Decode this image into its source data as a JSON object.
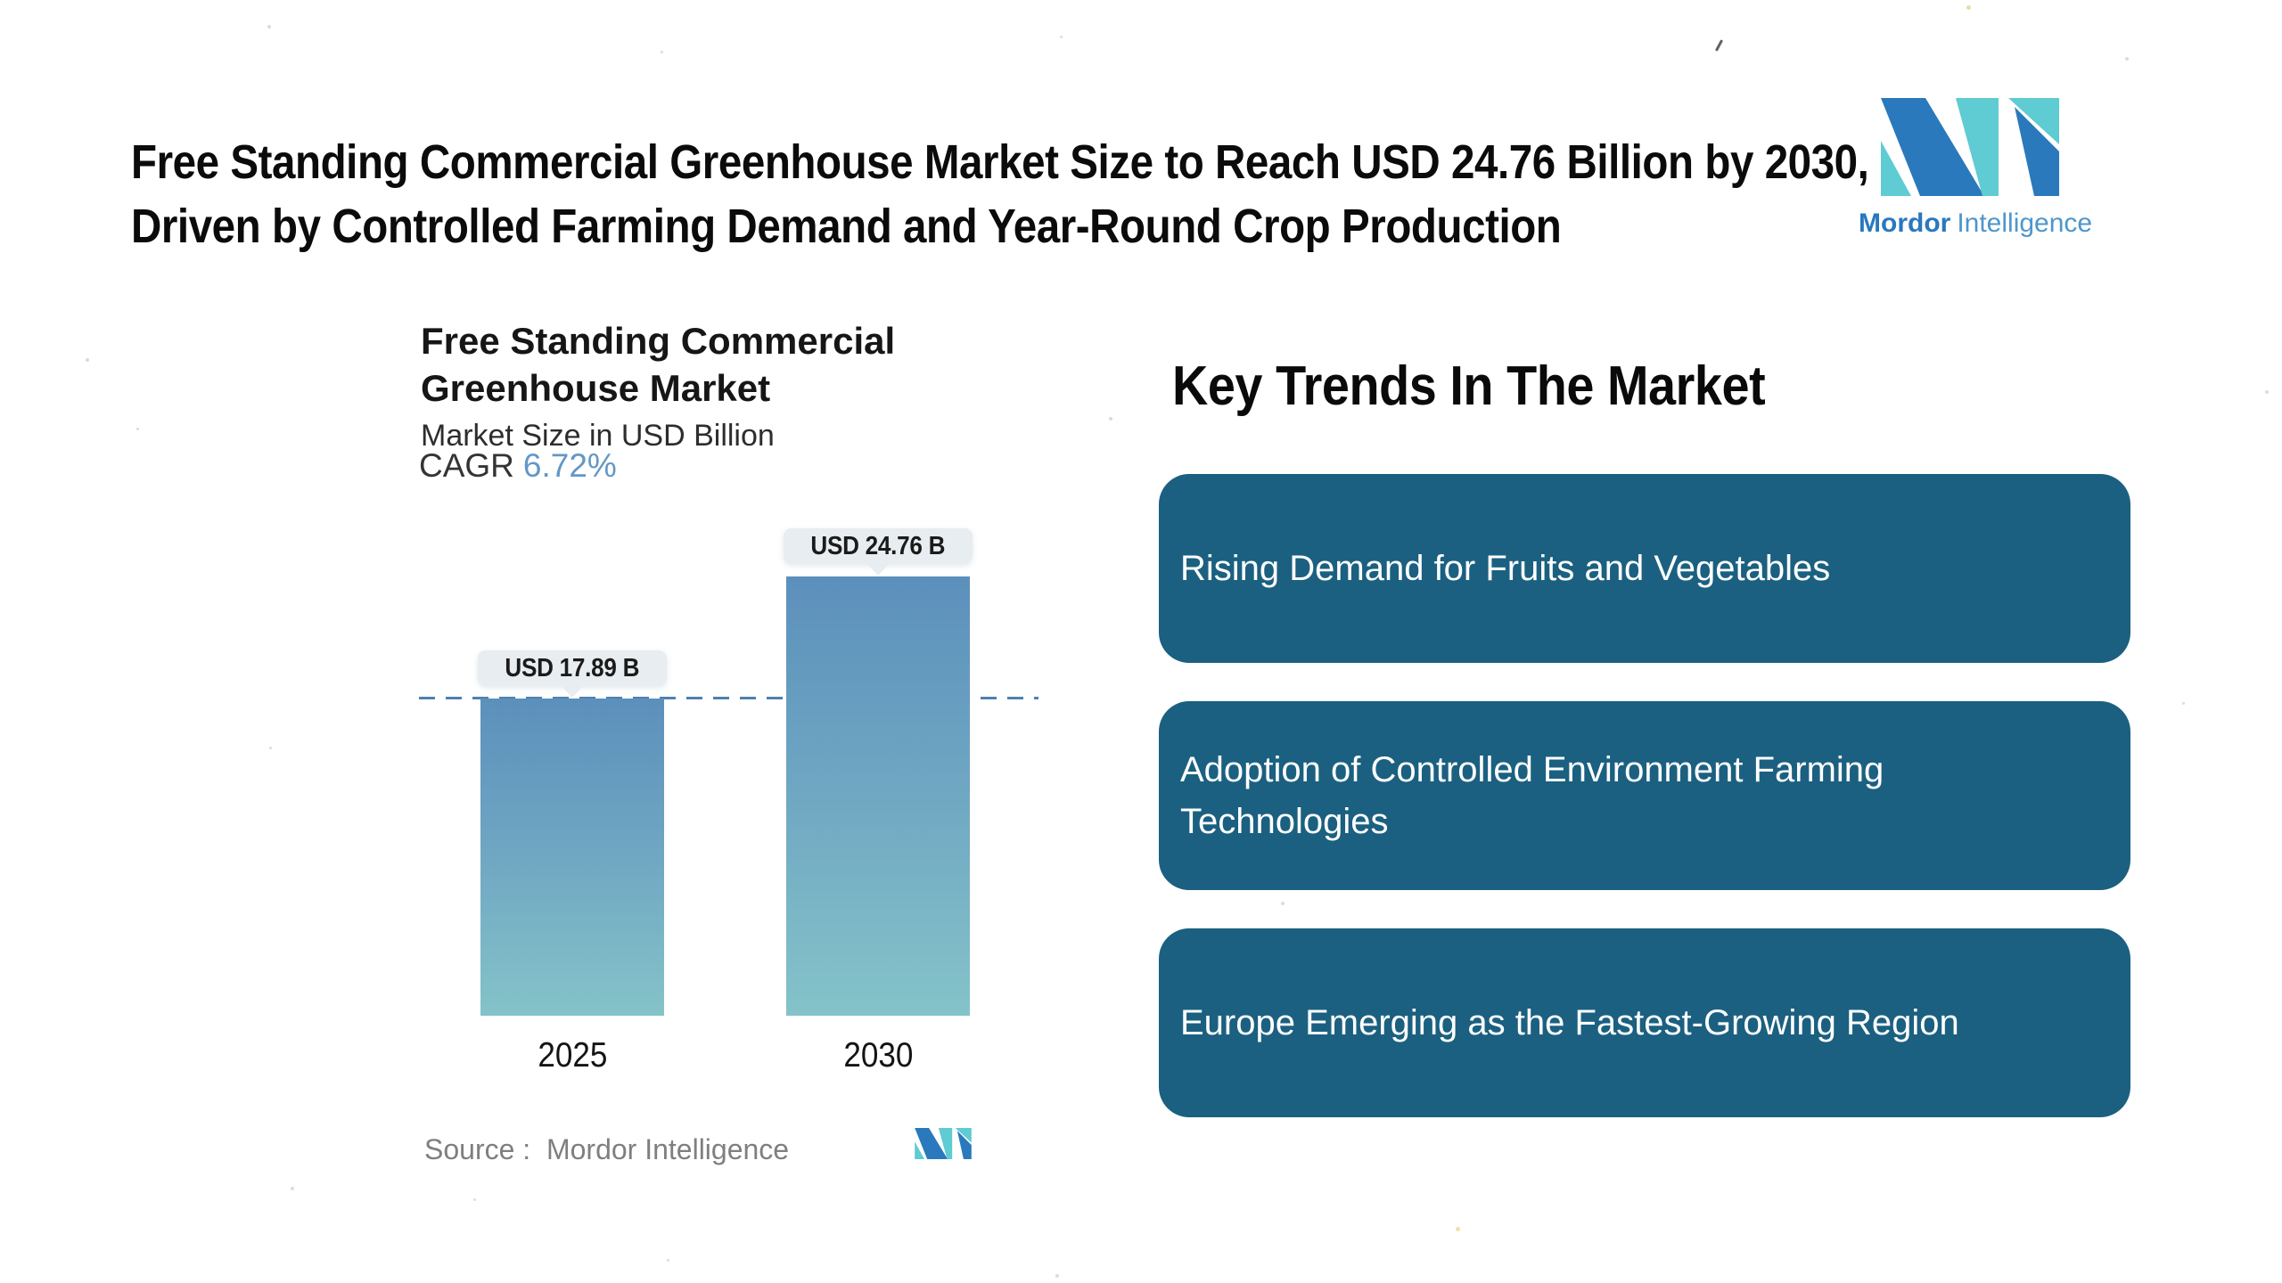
{
  "header": {
    "headline_line1": "Free Standing Commercial Greenhouse Market Size to Reach USD 24.76 Billion by 2030,",
    "headline_line2": "Driven by Controlled Farming Demand and Year-Round Crop Production"
  },
  "brand": {
    "name_bold": "Mordor",
    "name_light": "Intelligence",
    "colors": {
      "teal": "#5FCBD2",
      "blue": "#2A79BC",
      "wordmark_bold": "#2878BE",
      "wordmark_light": "#4E96CC"
    }
  },
  "chart_data": {
    "type": "bar",
    "title": "Free Standing Commercial Greenhouse Market",
    "title_lines": [
      "Free Standing Commercial",
      "Greenhouse Market"
    ],
    "subtitle": "Market Size in USD Billion",
    "cagr_label": "CAGR",
    "cagr_value": "6.72%",
    "categories": [
      "2025",
      "2030"
    ],
    "values": [
      17.89,
      24.76
    ],
    "bar_labels": [
      "USD 17.89 B",
      "USD 24.76 B"
    ],
    "unit": "USD Billion",
    "ylim": [
      0,
      26
    ],
    "grid": "off",
    "legend": "none",
    "reference_line": {
      "value": 17.89,
      "style": "dashed"
    },
    "source": "Source :  Mordor Intelligence",
    "colors": {
      "bar_gradient_top": "#5C90BC",
      "bar_gradient_bottom": "#84C3C9",
      "dashed_line": "#4E81AF",
      "value_label_bg": "#E7EDF0",
      "cagr_accent": "#6397C6"
    }
  },
  "key_trends": {
    "heading": "Key Trends In The Market",
    "box_color": "#1B6080",
    "items": [
      "Rising Demand for Fruits and Vegetables",
      "Adoption of Controlled Environment Farming Technologies",
      "Europe Emerging as the Fastest-Growing Region"
    ]
  }
}
